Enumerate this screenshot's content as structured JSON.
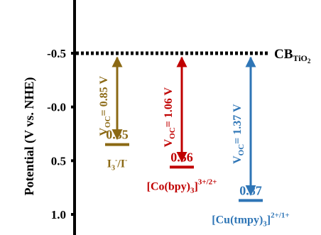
{
  "chart_data": {
    "type": "diagram",
    "ylabel": "Potential (V vs. NHE)",
    "ylim": [
      1.18,
      -0.72
    ],
    "y_inverted": true,
    "y_ticks": [
      {
        "value": -0.5,
        "label": "-0.5"
      },
      {
        "value": 0.0,
        "label": "-0.0"
      },
      {
        "value": 0.5,
        "label": "0.5"
      },
      {
        "value": 1.0,
        "label": "1.0"
      }
    ],
    "conduction_band": {
      "value": -0.5,
      "label_main": "CB",
      "label_sub": "TiO",
      "label_sub2": "2",
      "line_style": "dotted"
    },
    "levels": [
      {
        "name": "I3-/I-",
        "label_parts": [
          "I",
          "3",
          "-",
          "/I",
          "-"
        ],
        "value": 0.35,
        "value_label": "0.35",
        "voc_text": "V",
        "voc_sub": "OC",
        "voc_value": "= 0.85 V",
        "color": "#8B6914"
      },
      {
        "name": "[Co(bpy)3]3+/2+",
        "label_parts": [
          "[Co(bpy)",
          "3",
          "]",
          "3+/2+"
        ],
        "value": 0.56,
        "value_label": "0.56",
        "voc_text": "V",
        "voc_sub": "OC",
        "voc_value": "= 1.06 V",
        "color": "#C00000"
      },
      {
        "name": "[Cu(tmpy)3]2+/1+",
        "label_parts": [
          "[Cu(tmpy)",
          "3",
          "]",
          "2+/1+"
        ],
        "value": 0.87,
        "value_label": "0.87",
        "voc_text": "V",
        "voc_sub": "OC",
        "voc_value": "= 1.37 V",
        "color": "#2E75B6"
      }
    ]
  }
}
